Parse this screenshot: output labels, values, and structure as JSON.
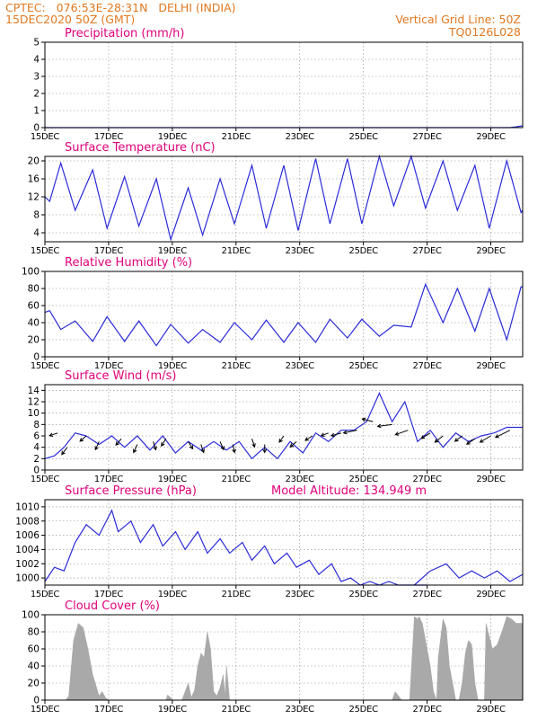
{
  "header": {
    "left_line1": "CPTEC:   076:53E-28:31N   DELHI (INDIA)",
    "left_line2": "15DEC2020 50Z (GMT)",
    "right_line1": "Vertical Grid Line: 50Z",
    "right_line2": "TQ0126L028"
  },
  "colors": {
    "header": "#e07820",
    "panel_title": "#e0007a",
    "series": "#2b2bd9",
    "wind_arrow": "#000000",
    "cloud_fill": "#a9a9a9",
    "grid": "#888888"
  },
  "chart_data": [
    {
      "id": "precip",
      "type": "line",
      "title": "Precipitation (mm/h)",
      "ylim": [
        0,
        5
      ],
      "yticks": [
        "0",
        "1",
        "2",
        "3",
        "4",
        "5"
      ],
      "x_ticks": [
        "15DEC",
        "17DEC",
        "19DEC",
        "21DEC",
        "23DEC",
        "25DEC",
        "27DEC",
        "29DEC"
      ],
      "x_range_days": [
        0,
        15
      ],
      "grid": true,
      "series": [
        {
          "x": [
            0,
            14.6,
            14.8,
            14.9,
            15.0
          ],
          "values": [
            0,
            0,
            0.05,
            0.08,
            0.1
          ]
        }
      ]
    },
    {
      "id": "temp",
      "type": "line",
      "title": "Surface Temperature (nC)",
      "ylim": [
        2,
        21
      ],
      "yticks": [
        "4",
        "8",
        "12",
        "16",
        "20"
      ],
      "ytick_values": [
        4,
        8,
        12,
        16,
        20
      ],
      "x_ticks": [
        "15DEC",
        "17DEC",
        "19DEC",
        "21DEC",
        "23DEC",
        "25DEC",
        "27DEC",
        "29DEC"
      ],
      "x_range_days": [
        0,
        15
      ],
      "grid": true,
      "series": [
        {
          "x": [
            0,
            0.15,
            0.5,
            0.95,
            1.5,
            1.95,
            2.5,
            2.95,
            3.5,
            3.95,
            4.5,
            4.95,
            5.5,
            5.95,
            6.5,
            6.95,
            7.5,
            7.95,
            8.5,
            8.95,
            9.5,
            9.95,
            10.5,
            10.95,
            11.5,
            11.95,
            12.5,
            12.95,
            13.5,
            13.95,
            14.5,
            14.95,
            15.0
          ],
          "values": [
            12,
            11,
            19.5,
            9,
            18,
            5,
            16.5,
            5.5,
            16,
            2.5,
            14,
            3.5,
            16,
            6,
            19,
            5,
            19,
            4.5,
            20.5,
            6,
            20.5,
            6,
            21,
            10,
            21,
            9.5,
            20,
            9,
            19,
            5,
            20,
            8.5,
            9
          ]
        }
      ]
    },
    {
      "id": "rh",
      "type": "line",
      "title": "Relative Humidity (%)",
      "ylim": [
        0,
        100
      ],
      "yticks": [
        "0",
        "20",
        "40",
        "60",
        "80",
        "100"
      ],
      "x_ticks": [
        "15DEC",
        "17DEC",
        "19DEC",
        "21DEC",
        "23DEC",
        "25DEC",
        "27DEC",
        "29DEC"
      ],
      "x_range_days": [
        0,
        15
      ],
      "grid": true,
      "series": [
        {
          "x": [
            0,
            0.15,
            0.5,
            0.95,
            1.5,
            1.95,
            2.5,
            2.95,
            3.5,
            3.95,
            4.5,
            4.95,
            5.5,
            5.95,
            6.5,
            6.95,
            7.5,
            7.95,
            8.5,
            8.95,
            9.5,
            9.95,
            10.5,
            10.95,
            11.5,
            11.95,
            12.5,
            12.95,
            13.5,
            13.95,
            14.5,
            14.95,
            15.0
          ],
          "values": [
            52,
            54,
            32,
            42,
            18,
            47,
            18,
            42,
            13,
            38,
            16,
            32,
            17,
            40,
            20,
            43,
            17,
            40,
            17,
            44,
            22,
            44,
            24,
            37,
            35,
            85,
            40,
            80,
            30,
            80,
            20,
            82,
            82
          ]
        }
      ]
    },
    {
      "id": "wind",
      "type": "line",
      "title": "Surface Wind (m/s)",
      "ylim": [
        0,
        15
      ],
      "yticks": [
        "0",
        "2",
        "4",
        "6",
        "8",
        "10",
        "12",
        "14"
      ],
      "x_ticks": [
        "15DEC",
        "17DEC",
        "19DEC",
        "21DEC",
        "23DEC",
        "25DEC",
        "27DEC",
        "29DEC"
      ],
      "x_range_days": [
        0,
        15
      ],
      "grid": true,
      "series": [
        {
          "x": [
            0,
            0.3,
            0.6,
            0.95,
            1.3,
            1.7,
            2.1,
            2.5,
            2.9,
            3.3,
            3.7,
            4.1,
            4.5,
            4.9,
            5.3,
            5.7,
            6.1,
            6.5,
            6.9,
            7.3,
            7.7,
            8.1,
            8.5,
            8.9,
            9.3,
            9.7,
            10.1,
            10.5,
            10.9,
            11.3,
            11.7,
            12.1,
            12.5,
            12.9,
            13.3,
            13.7,
            14.1,
            14.5,
            15.0
          ],
          "values": [
            2,
            2.5,
            4,
            6.5,
            6,
            4.5,
            6,
            4,
            6,
            3.5,
            6,
            3,
            5,
            3.5,
            5,
            3.5,
            5,
            2,
            4,
            2,
            5,
            3,
            6.5,
            5,
            7,
            7,
            8.5,
            13.5,
            8.5,
            12,
            5,
            7,
            4,
            6.5,
            5,
            6,
            6.5,
            7.5,
            7.5
          ]
        }
      ],
      "arrows": [
        {
          "x": 0.4,
          "speed": 6.5,
          "dx": -9,
          "dy": 3
        },
        {
          "x": 0.7,
          "speed": 4,
          "dx": -6,
          "dy": 8
        },
        {
          "x": 1.3,
          "speed": 6,
          "dx": -7,
          "dy": 6
        },
        {
          "x": 1.7,
          "speed": 5,
          "dx": -4,
          "dy": 9
        },
        {
          "x": 2.4,
          "speed": 5.5,
          "dx": -6,
          "dy": 7
        },
        {
          "x": 2.9,
          "speed": 4.5,
          "dx": -4,
          "dy": 9
        },
        {
          "x": 3.4,
          "speed": 5,
          "dx": 3,
          "dy": 9
        },
        {
          "x": 3.8,
          "speed": 5.5,
          "dx": -5,
          "dy": 8
        },
        {
          "x": 4.5,
          "speed": 5,
          "dx": 5,
          "dy": 8
        },
        {
          "x": 4.9,
          "speed": 4.5,
          "dx": 3,
          "dy": 9
        },
        {
          "x": 5.5,
          "speed": 5,
          "dx": 4,
          "dy": 9
        },
        {
          "x": 5.9,
          "speed": 4.5,
          "dx": 2,
          "dy": 9
        },
        {
          "x": 6.5,
          "speed": 5.5,
          "dx": 3,
          "dy": 9
        },
        {
          "x": 6.9,
          "speed": 4.5,
          "dx": 0,
          "dy": 9
        },
        {
          "x": 7.5,
          "speed": 6,
          "dx": -5,
          "dy": 7
        },
        {
          "x": 7.9,
          "speed": 5,
          "dx": -7,
          "dy": 6
        },
        {
          "x": 8.4,
          "speed": 6,
          "dx": -8,
          "dy": 5
        },
        {
          "x": 8.9,
          "speed": 6.5,
          "dx": -8,
          "dy": 3
        },
        {
          "x": 9.3,
          "speed": 6.5,
          "dx": -11,
          "dy": 3
        },
        {
          "x": 9.8,
          "speed": 7,
          "dx": -15,
          "dy": 3
        },
        {
          "x": 10.3,
          "speed": 8.5,
          "dx": -12,
          "dy": -3
        },
        {
          "x": 10.9,
          "speed": 8,
          "dx": -16,
          "dy": 2
        },
        {
          "x": 11.4,
          "speed": 7,
          "dx": -14,
          "dy": 5
        },
        {
          "x": 12.1,
          "speed": 6.5,
          "dx": -10,
          "dy": 6
        },
        {
          "x": 12.5,
          "speed": 6,
          "dx": -9,
          "dy": 7
        },
        {
          "x": 13.1,
          "speed": 6,
          "dx": -8,
          "dy": 6
        },
        {
          "x": 13.5,
          "speed": 5.5,
          "dx": -9,
          "dy": 6
        },
        {
          "x": 14.0,
          "speed": 6,
          "dx": -12,
          "dy": 7
        },
        {
          "x": 14.6,
          "speed": 7,
          "dx": -16,
          "dy": 8
        }
      ]
    },
    {
      "id": "pres",
      "type": "line",
      "title": "Surface Pressure (hPa)",
      "annotation": "Model Altitude: 134.949 m",
      "ylim": [
        999,
        1011
      ],
      "yticks": [
        "1000",
        "1002",
        "1004",
        "1006",
        "1008",
        "1010"
      ],
      "ytick_values": [
        1000,
        1002,
        1004,
        1006,
        1008,
        1010
      ],
      "x_ticks": [
        "15DEC",
        "17DEC",
        "19DEC",
        "21DEC",
        "23DEC",
        "25DEC",
        "27DEC",
        "29DEC"
      ],
      "x_range_days": [
        0,
        15
      ],
      "grid": true,
      "series": [
        {
          "x": [
            0,
            0.3,
            0.6,
            0.95,
            1.3,
            1.7,
            2.1,
            2.3,
            2.7,
            3.0,
            3.4,
            3.7,
            4.1,
            4.4,
            4.8,
            5.1,
            5.5,
            5.8,
            6.2,
            6.5,
            6.9,
            7.2,
            7.6,
            7.9,
            8.3,
            8.6,
            9.0,
            9.3,
            9.6,
            9.9,
            10.2,
            10.5,
            10.8,
            11.1,
            11.4,
            11.7,
            12.0
          ],
          "values": [
            999.5,
            1001.5,
            1001.0,
            1005.0,
            1007.5,
            1006.0,
            1009.5,
            1006.5,
            1008.0,
            1005.0,
            1007.5,
            1004.5,
            1006.5,
            1004.0,
            1006.5,
            1003.5,
            1005.5,
            1003.5,
            1005.0,
            1002.5,
            1004.5,
            1002.0,
            1003.5,
            1001.5,
            1002.5,
            1000.5,
            1002.0,
            999.5,
            1000.0,
            999.0,
            999.5,
            998.8,
            999.5,
            998.5,
            999.0,
            998.5,
            999.0
          ]
        },
        {
          "x": [
            11.6,
            12.1,
            12.6,
            13.0,
            13.4,
            13.8,
            14.2,
            14.6,
            15.0
          ],
          "values": [
            998.8,
            1001.0,
            1002.0,
            1000.0,
            1001.0,
            1000.0,
            1001.0,
            999.5,
            1000.5
          ]
        }
      ]
    },
    {
      "id": "cloud",
      "type": "area",
      "title": "Cloud Cover (%)",
      "ylim": [
        0,
        100
      ],
      "yticks": [
        "0",
        "20",
        "40",
        "60",
        "80",
        "100"
      ],
      "x_ticks": [
        "15DEC",
        "17DEC",
        "19DEC",
        "21DEC",
        "23DEC",
        "25DEC",
        "27DEC",
        "29DEC"
      ],
      "x_range_days": [
        0,
        15
      ],
      "grid": true,
      "series": [
        {
          "x": [
            0,
            0.65,
            0.75,
            0.9,
            1.05,
            1.2,
            1.35,
            1.5,
            1.62,
            1.7,
            1.8,
            1.9,
            2.0,
            3.8,
            3.85,
            3.95,
            4.0,
            4.3,
            4.4,
            4.5,
            4.6,
            4.7,
            4.8,
            4.9,
            5.0,
            5.1,
            5.2,
            5.3,
            5.4,
            5.5,
            5.6,
            5.65,
            5.7,
            5.8,
            6.0,
            10.9,
            11.0,
            11.1,
            11.2,
            11.3,
            11.45,
            11.6,
            11.7,
            11.75,
            11.85,
            12.0,
            12.1,
            12.2,
            12.3,
            12.35,
            12.5,
            12.6,
            12.7,
            12.9,
            13.0,
            13.1,
            13.2,
            13.3,
            13.4,
            13.5,
            13.6,
            13.8,
            13.85,
            13.95,
            14.05,
            14.2,
            14.35,
            14.5,
            14.65,
            14.8,
            15.0
          ],
          "values": [
            0,
            0,
            5,
            70,
            90,
            85,
            60,
            30,
            15,
            5,
            10,
            3,
            0,
            0,
            6,
            3,
            0,
            0,
            10,
            20,
            3,
            12,
            40,
            55,
            50,
            80,
            60,
            10,
            5,
            15,
            30,
            5,
            40,
            0,
            0,
            0,
            10,
            5,
            0,
            0,
            0,
            98,
            95,
            98,
            90,
            60,
            40,
            10,
            0,
            50,
            95,
            85,
            40,
            0,
            0,
            20,
            55,
            70,
            65,
            20,
            0,
            0,
            90,
            75,
            60,
            65,
            80,
            98,
            95,
            90,
            90
          ]
        }
      ]
    }
  ]
}
